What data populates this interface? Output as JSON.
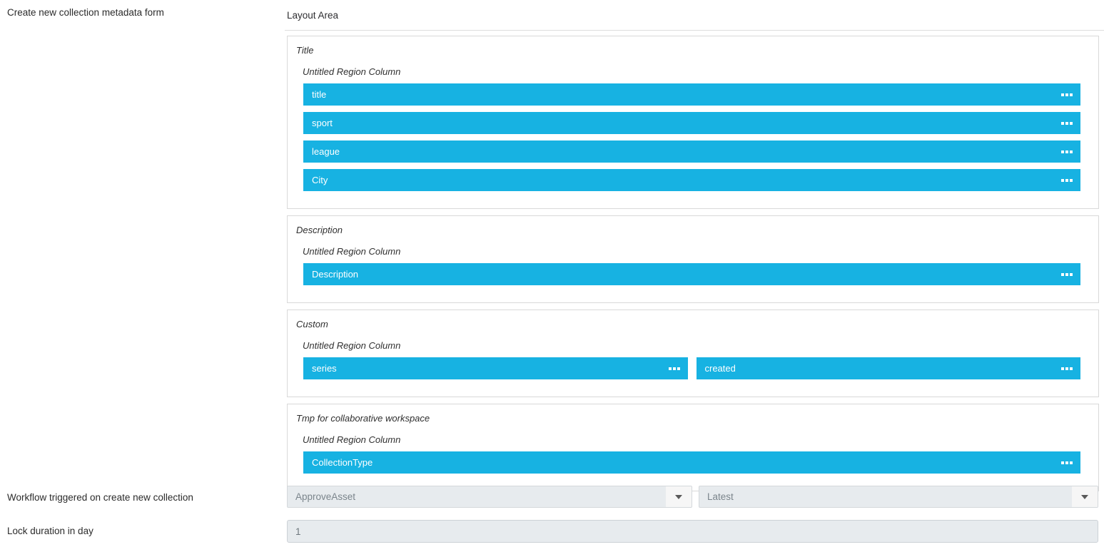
{
  "page": {
    "form_title": "Create new collection metadata form",
    "layout_area": {
      "title": "Layout Area",
      "groups": [
        {
          "label": "Title",
          "region_label": "Untitled Region Column",
          "layout": "stack",
          "fields": [
            "title",
            "sport",
            "league",
            "City"
          ]
        },
        {
          "label": "Description",
          "region_label": "Untitled Region Column",
          "layout": "stack",
          "fields": [
            "Description"
          ]
        },
        {
          "label": "Custom",
          "region_label": "Untitled Region Column",
          "layout": "row",
          "fields": [
            "series",
            "created"
          ]
        },
        {
          "label": "Tmp for collaborative workspace",
          "region_label": "Untitled Region Column",
          "layout": "stack",
          "fields": [
            "CollectionType"
          ]
        }
      ]
    },
    "workflow_row": {
      "label": "Workflow triggered on create new collection",
      "workflow_dropdown_value": "ApproveAsset",
      "version_dropdown_value": "Latest"
    },
    "lock_row": {
      "label": "Lock duration in day",
      "value": "1"
    },
    "colors": {
      "field_bar": "#17b2e2",
      "group_border": "#d9d9d9",
      "control_background": "#e7ebee"
    }
  }
}
